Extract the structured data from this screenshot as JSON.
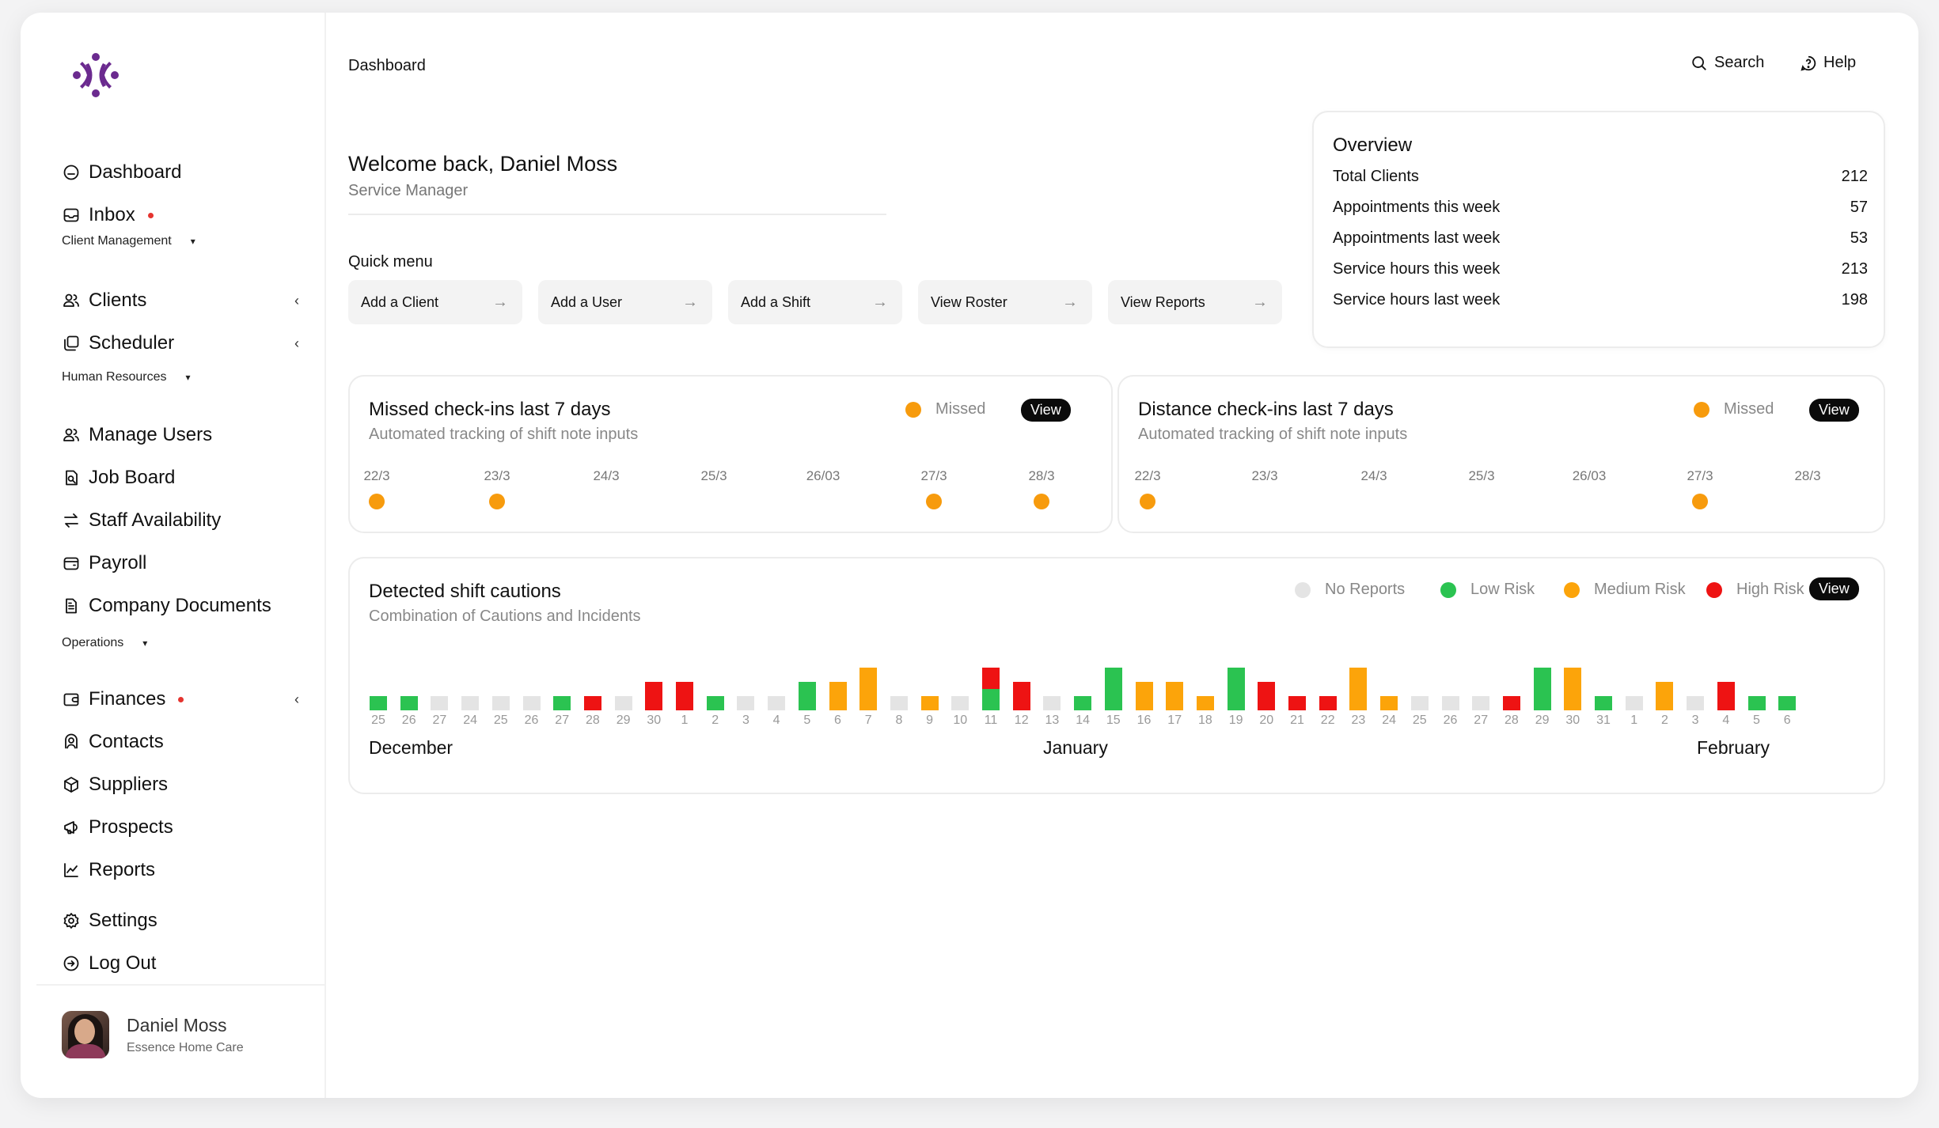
{
  "sidebar": {
    "items": [
      {
        "label": "Dashboard",
        "icon": "dashboard-icon"
      },
      {
        "label": "Inbox",
        "icon": "inbox-icon",
        "notification": true
      },
      {
        "label": "Clients",
        "icon": "users-icon",
        "chevron": "‹"
      },
      {
        "label": "Scheduler",
        "icon": "scheduler-icon",
        "chevron": "‹"
      },
      {
        "label": "Manage Users",
        "icon": "users-icon"
      },
      {
        "label": "Job Board",
        "icon": "job-board-icon"
      },
      {
        "label": "Staff Availability",
        "icon": "swap-icon"
      },
      {
        "label": "Payroll",
        "icon": "wallet-icon"
      },
      {
        "label": "Company Documents",
        "icon": "document-icon"
      },
      {
        "label": "Finances",
        "icon": "finance-icon",
        "notification": true,
        "chevron": "‹"
      },
      {
        "label": "Contacts",
        "icon": "contacts-icon"
      },
      {
        "label": "Suppliers",
        "icon": "box-icon"
      },
      {
        "label": "Prospects",
        "icon": "megaphone-icon"
      },
      {
        "label": "Reports",
        "icon": "chart-icon"
      },
      {
        "label": "Settings",
        "icon": "gear-icon"
      },
      {
        "label": "Log Out",
        "icon": "logout-icon"
      }
    ],
    "sections": [
      "Client Management",
      "Human Resources",
      "Operations"
    ],
    "section_caret": "▾",
    "profile": {
      "name": "Daniel Moss",
      "org": "Essence Home Care"
    }
  },
  "header": {
    "breadcrumb": "Dashboard",
    "search_label": "Search",
    "help_label": "Help"
  },
  "welcome": {
    "greeting": "Welcome back, Daniel Moss",
    "role": "Service Manager"
  },
  "quick_menu": {
    "title": "Quick menu",
    "arrow": "→",
    "items": [
      "Add a Client",
      "Add a User",
      "Add a Shift",
      "View Roster",
      "View Reports"
    ]
  },
  "overview": {
    "title": "Overview",
    "rows": [
      {
        "label": "Total Clients",
        "value": "212"
      },
      {
        "label": "Appointments this week",
        "value": "57"
      },
      {
        "label": "Appointments last week",
        "value": "53"
      },
      {
        "label": "Service hours this week",
        "value": "213"
      },
      {
        "label": "Service hours last week",
        "value": "198"
      }
    ]
  },
  "missed_checkins": {
    "title": "Missed check-ins last 7 days",
    "subtitle": "Automated tracking of shift note inputs",
    "legend": "Missed",
    "view_label": "View",
    "days": [
      "22/3",
      "23/3",
      "24/3",
      "25/3",
      "26/03",
      "27/3",
      "28/3"
    ],
    "missed": [
      true,
      true,
      false,
      false,
      false,
      true,
      true
    ]
  },
  "distance_checkins": {
    "title": "Distance check-ins last 7 days",
    "subtitle": "Automated tracking of shift note inputs",
    "legend": "Missed",
    "view_label": "View",
    "days": [
      "22/3",
      "23/3",
      "24/3",
      "25/3",
      "26/03",
      "27/3",
      "28/3"
    ],
    "missed": [
      true,
      false,
      false,
      false,
      false,
      true,
      false
    ]
  },
  "cautions": {
    "title": "Detected shift cautions",
    "subtitle": "Combination of Cautions and Incidents",
    "view_label": "View",
    "legend": [
      {
        "label": "No Reports",
        "color": "#e4e4e4"
      },
      {
        "label": "Low Risk",
        "color": "#2bc351"
      },
      {
        "label": "Medium Risk",
        "color": "#fca40a"
      },
      {
        "label": "High Risk",
        "color": "#ee1313"
      }
    ],
    "months": [
      "December",
      "January",
      "February"
    ]
  },
  "chart_data": {
    "type": "bar",
    "title": "Detected shift cautions",
    "subtitle": "Combination of Cautions and Incidents",
    "categories": [
      "25",
      "26",
      "27",
      "24",
      "25",
      "26",
      "27",
      "28",
      "29",
      "30",
      "1",
      "2",
      "3",
      "4",
      "5",
      "6",
      "7",
      "8",
      "9",
      "10",
      "11",
      "12",
      "13",
      "14",
      "15",
      "16",
      "17",
      "18",
      "19",
      "20",
      "21",
      "22",
      "23",
      "24",
      "25",
      "26",
      "27",
      "28",
      "29",
      "30",
      "31",
      "1",
      "2",
      "3",
      "4",
      "5",
      "6"
    ],
    "risk": [
      "low",
      "low",
      "none",
      "none",
      "none",
      "none",
      "low",
      "high",
      "none",
      "high",
      "high",
      "low",
      "none",
      "none",
      "low",
      "medium",
      "medium",
      "none",
      "medium",
      "none",
      "low+high",
      "high",
      "none",
      "low",
      "low",
      "medium",
      "medium",
      "medium",
      "low",
      "high",
      "high",
      "high",
      "medium",
      "medium",
      "none",
      "none",
      "none",
      "high",
      "low",
      "medium",
      "low",
      "none",
      "medium",
      "none",
      "high",
      "low",
      "low"
    ],
    "values": [
      1,
      1,
      1,
      1,
      1,
      1,
      1,
      1,
      1,
      2,
      2,
      1,
      1,
      1,
      2,
      2,
      3,
      1,
      1,
      1,
      3,
      2,
      1,
      1,
      3,
      2,
      2,
      1,
      3,
      2,
      1,
      1,
      3,
      1,
      1,
      1,
      1,
      1,
      3,
      3,
      1,
      1,
      2,
      1,
      2,
      1,
      1
    ],
    "stacked_high_top": [
      0,
      0,
      0,
      0,
      0,
      0,
      0,
      0,
      0,
      0,
      0,
      0,
      0,
      0,
      0,
      0,
      0,
      0,
      0,
      0,
      1.5,
      0,
      0,
      0,
      0,
      0,
      0,
      0,
      0,
      0,
      0,
      0,
      0,
      0,
      0,
      0,
      0,
      0,
      0,
      0,
      0,
      0,
      0,
      0,
      0,
      0,
      0
    ],
    "month_labels": [
      "December",
      "January",
      "February"
    ],
    "legend": [
      "No Reports",
      "Low Risk",
      "Medium Risk",
      "High Risk"
    ],
    "colors": {
      "none": "#e4e4e4",
      "low": "#2bc351",
      "medium": "#fca40a",
      "high": "#ee1313"
    }
  },
  "colors": {
    "accent": "#6b2a8f",
    "missed": "#f79b0d"
  }
}
